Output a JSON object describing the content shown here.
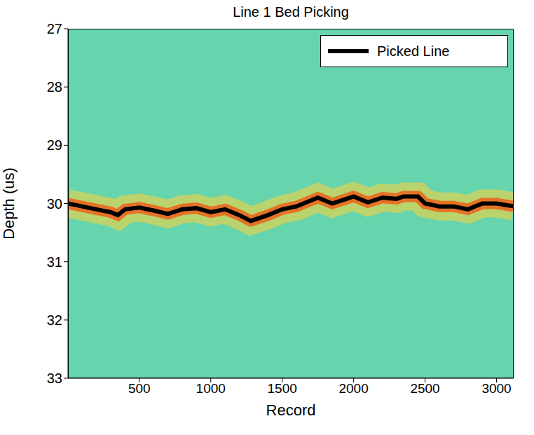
{
  "chart_data": {
    "type": "line",
    "title": "Line 1 Bed Picking",
    "x_label": "Record",
    "y_label": "Depth (us)",
    "xlim": [
      1,
      3120
    ],
    "xticks": [
      500,
      1000,
      1500,
      2000,
      2500,
      3000
    ],
    "ylim": [
      27,
      33
    ],
    "yticks": [
      27,
      28,
      29,
      30,
      31,
      32,
      33
    ],
    "grid": false,
    "legend": "upper right",
    "series": [
      {
        "name": "Picked Line",
        "color": "#000000",
        "line_style": "solid",
        "x": [
          1,
          100,
          200,
          300,
          350,
          400,
          500,
          600,
          700,
          800,
          900,
          1000,
          1100,
          1200,
          1280,
          1400,
          1500,
          1600,
          1700,
          1750,
          1850,
          1950,
          2000,
          2100,
          2200,
          2300,
          2350,
          2450,
          2500,
          2600,
          2700,
          2800,
          2900,
          3000,
          3120
        ],
        "values": [
          30.0,
          30.05,
          30.1,
          30.15,
          30.2,
          30.1,
          30.07,
          30.12,
          30.18,
          30.1,
          30.08,
          30.15,
          30.1,
          30.2,
          30.3,
          30.2,
          30.1,
          30.05,
          29.95,
          29.9,
          30.0,
          29.92,
          29.88,
          29.98,
          29.9,
          29.92,
          29.88,
          29.88,
          30.0,
          30.05,
          30.05,
          30.1,
          30.0,
          30.0,
          30.05
        ]
      }
    ]
  }
}
